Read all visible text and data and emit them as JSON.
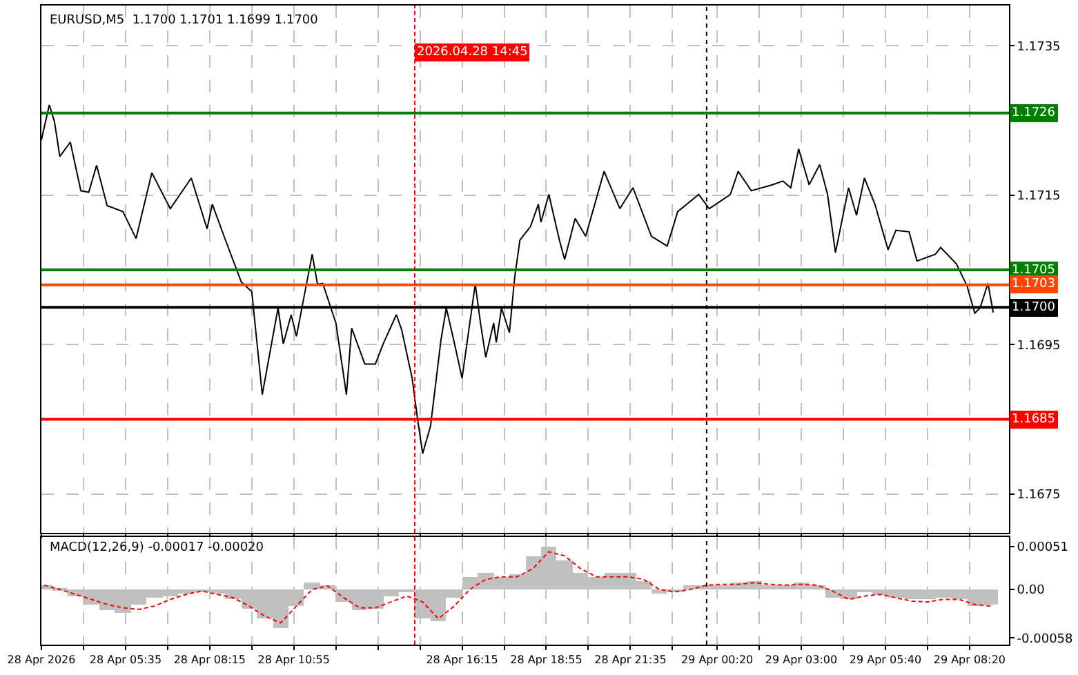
{
  "chart_data": [
    {
      "type": "line",
      "title": "EURUSD,M5  1.1700 1.1701 1.1699 1.1700",
      "x": [
        "2026-04-28T02:55",
        "2026-04-28T03:10",
        "2026-04-28T03:20",
        "2026-04-28T03:30",
        "2026-04-28T03:50",
        "2026-04-28T04:10",
        "2026-04-28T04:25",
        "2026-04-28T04:40",
        "2026-04-28T05:00",
        "2026-04-28T05:30",
        "2026-04-28T05:55",
        "2026-04-28T06:25",
        "2026-04-28T07:00",
        "2026-04-28T07:40",
        "2026-04-28T08:10",
        "2026-04-28T08:20",
        "2026-04-28T08:45",
        "2026-04-28T09:15",
        "2026-04-28T09:35",
        "2026-04-28T09:55",
        "2026-04-28T10:25",
        "2026-04-28T10:35",
        "2026-04-28T10:50",
        "2026-04-28T11:00",
        "2026-04-28T11:30",
        "2026-04-28T11:40",
        "2026-04-28T11:50",
        "2026-04-28T12:15",
        "2026-04-28T12:35",
        "2026-04-28T12:45",
        "2026-04-28T13:10",
        "2026-04-28T13:30",
        "2026-04-28T13:45",
        "2026-04-28T14:10",
        "2026-04-28T14:20",
        "2026-04-28T14:40",
        "2026-04-28T14:50",
        "2026-04-28T15:00",
        "2026-04-28T15:15",
        "2026-04-28T15:35",
        "2026-04-28T15:45",
        "2026-04-28T16:00",
        "2026-04-28T16:15",
        "2026-04-28T16:40",
        "2026-04-28T16:50",
        "2026-04-28T17:00",
        "2026-04-28T17:15",
        "2026-04-28T17:20",
        "2026-04-28T17:30",
        "2026-04-28T17:45",
        "2026-04-28T17:55",
        "2026-04-28T18:05",
        "2026-04-28T18:25",
        "2026-04-28T18:40",
        "2026-04-28T18:45",
        "2026-04-28T19:00",
        "2026-04-28T19:20",
        "2026-04-28T19:30",
        "2026-04-28T19:50",
        "2026-04-28T20:10",
        "2026-04-28T20:45",
        "2026-04-28T21:15",
        "2026-04-28T21:40",
        "2026-04-28T22:15",
        "2026-04-28T22:45",
        "2026-04-28T23:05",
        "2026-04-28T23:45",
        "2026-04-29T00:05",
        "2026-04-29T00:45",
        "2026-04-29T01:00",
        "2026-04-29T01:25",
        "2026-04-29T02:05",
        "2026-04-29T02:25",
        "2026-04-29T02:40",
        "2026-04-29T02:55",
        "2026-04-29T03:15",
        "2026-04-29T03:35",
        "2026-04-29T03:50",
        "2026-04-29T04:05",
        "2026-04-29T04:30",
        "2026-04-29T04:45",
        "2026-04-29T05:00",
        "2026-04-29T05:20",
        "2026-04-29T05:45",
        "2026-04-29T06:00",
        "2026-04-29T06:25",
        "2026-04-29T06:40",
        "2026-04-29T07:15",
        "2026-04-29T07:25",
        "2026-04-29T07:55",
        "2026-04-29T08:15",
        "2026-04-29T08:30",
        "2026-04-29T08:40",
        "2026-04-29T08:55",
        "2026-04-29T09:05"
      ],
      "series": [
        {
          "color": "#000000",
          "values": [
            1.17224,
            1.17271,
            1.17248,
            1.17202,
            1.17221,
            1.17156,
            1.17154,
            1.1719,
            1.17136,
            1.17128,
            1.17092,
            1.1718,
            1.17132,
            1.17173,
            1.17105,
            1.17138,
            1.1709,
            1.17034,
            1.17021,
            1.16883,
            1.16999,
            1.16951,
            1.1699,
            1.16961,
            1.17071,
            1.17031,
            1.17032,
            1.16979,
            1.16883,
            1.16972,
            1.16924,
            1.16924,
            1.16951,
            1.1699,
            1.1697,
            1.16905,
            1.16852,
            1.16804,
            1.16841,
            1.16957,
            1.16999,
            1.16953,
            1.16905,
            1.17031,
            1.16979,
            1.16933,
            1.16979,
            1.16953,
            1.16999,
            1.16966,
            1.1704,
            1.1709,
            1.17108,
            1.17138,
            1.17114,
            1.17151,
            1.1709,
            1.17064,
            1.17119,
            1.17095,
            1.17182,
            1.17132,
            1.1716,
            1.17095,
            1.17082,
            1.17128,
            1.17151,
            1.17132,
            1.17151,
            1.17182,
            1.17156,
            1.17164,
            1.17169,
            1.1716,
            1.17212,
            1.17164,
            1.17191,
            1.17151,
            1.17073,
            1.1716,
            1.17123,
            1.17173,
            1.17138,
            1.17077,
            1.17103,
            1.17101,
            1.17062,
            1.17071,
            1.1708,
            1.17058,
            1.17029,
            1.16992,
            1.16999,
            1.17032,
            1.16993
          ]
        }
      ],
      "xlim": [
        "2026-04-28T02:55",
        "2026-04-29T09:35"
      ],
      "xticks": [
        {
          "value": "2026-04-28T02:55",
          "label": null
        },
        {
          "value": "2026-04-28T04:15",
          "label": null
        },
        {
          "value": "2026-04-28T05:35",
          "label": null
        },
        {
          "value": "2026-04-28T06:55",
          "label": null
        },
        {
          "value": "2026-04-28T08:15",
          "label": null
        },
        {
          "value": "2026-04-28T09:35",
          "label": null
        },
        {
          "value": "2026-04-28T10:55",
          "label": null
        },
        {
          "value": "2026-04-28T12:15",
          "label": null
        },
        {
          "value": "2026-04-28T13:35",
          "label": null
        },
        {
          "value": "2026-04-28T14:55",
          "label": null
        },
        {
          "value": "2026-04-28T16:15",
          "label": null
        },
        {
          "value": "2026-04-28T17:35",
          "label": null
        },
        {
          "value": "2026-04-28T18:55",
          "label": null
        },
        {
          "value": "2026-04-28T20:15",
          "label": null
        },
        {
          "value": "2026-04-28T21:35",
          "label": null
        },
        {
          "value": "2026-04-28T22:55",
          "label": null
        },
        {
          "value": "2026-04-29T00:20",
          "label": null
        },
        {
          "value": "2026-04-29T01:40",
          "label": null
        },
        {
          "value": "2026-04-29T03:00",
          "label": null
        },
        {
          "value": "2026-04-29T04:20",
          "label": null
        },
        {
          "value": "2026-04-29T05:40",
          "label": null
        },
        {
          "value": "2026-04-29T07:00",
          "label": null
        },
        {
          "value": "2026-04-29T08:20",
          "label": null
        }
      ],
      "ylim": [
        1.16698,
        1.17404
      ],
      "yticks": [
        1.1735,
        1.1715,
        1.1695,
        1.1675
      ],
      "ref_lines": [
        {
          "axis": "y",
          "value": 1.1726,
          "label": "1.1726",
          "color": "#008000"
        },
        {
          "axis": "y",
          "value": 1.1705,
          "label": "1.1705",
          "color": "#008000"
        },
        {
          "axis": "y",
          "value": 1.1703,
          "label": "1.1703",
          "color": "#ff4500"
        },
        {
          "axis": "y",
          "value": 1.17,
          "label": "1.1700",
          "color": "#000000"
        },
        {
          "axis": "y",
          "value": 1.1685,
          "label": "1.1685",
          "color": "#ff0000"
        },
        {
          "axis": "x",
          "value": "2026-04-28T14:45",
          "label": "2026.04.28 14:45",
          "color": "#ff0000",
          "line_style": "dashed"
        },
        {
          "axis": "x",
          "value": "2026-04-29T00:00",
          "color": "#000000",
          "line_style": "dotted"
        }
      ],
      "grid": true,
      "tick_labels": "y"
    },
    {
      "type": "bar",
      "title": "MACD(12,26,9) -0.00017 -0.00020",
      "x": [
        "2026-04-28T03:00",
        "2026-04-28T03:30",
        "2026-04-28T04:00",
        "2026-04-28T04:30",
        "2026-04-28T05:00",
        "2026-04-28T05:30",
        "2026-04-28T06:00",
        "2026-04-28T06:30",
        "2026-04-28T07:00",
        "2026-04-28T07:30",
        "2026-04-28T08:00",
        "2026-04-28T08:30",
        "2026-04-28T09:00",
        "2026-04-28T09:30",
        "2026-04-28T10:00",
        "2026-04-28T10:30",
        "2026-04-28T11:00",
        "2026-04-28T11:30",
        "2026-04-28T12:00",
        "2026-04-28T12:30",
        "2026-04-28T13:00",
        "2026-04-28T13:30",
        "2026-04-28T14:00",
        "2026-04-28T14:30",
        "2026-04-28T15:00",
        "2026-04-28T15:30",
        "2026-04-28T16:00",
        "2026-04-28T16:30",
        "2026-04-28T17:00",
        "2026-04-28T17:30",
        "2026-04-28T18:00",
        "2026-04-28T18:30",
        "2026-04-28T19:00",
        "2026-04-28T19:30",
        "2026-04-28T20:00",
        "2026-04-28T20:30",
        "2026-04-28T21:00",
        "2026-04-28T21:30",
        "2026-04-28T22:00",
        "2026-04-28T22:30",
        "2026-04-28T23:00",
        "2026-04-28T23:30",
        "2026-04-29T00:00",
        "2026-04-29T00:30",
        "2026-04-29T01:00",
        "2026-04-29T01:30",
        "2026-04-29T02:00",
        "2026-04-29T02:30",
        "2026-04-29T03:00",
        "2026-04-29T03:30",
        "2026-04-29T04:00",
        "2026-04-29T04:30",
        "2026-04-29T05:00",
        "2026-04-29T05:30",
        "2026-04-29T06:00",
        "2026-04-29T06:30",
        "2026-04-29T07:00",
        "2026-04-29T07:30",
        "2026-04-29T08:00",
        "2026-04-29T08:30",
        "2026-04-29T09:00"
      ],
      "series": [
        {
          "type": "bar",
          "color": "#c0c0c0",
          "values": [
            5e-05,
            2e-05,
            -8e-05,
            -0.00018,
            -0.00025,
            -0.00027,
            -0.00018,
            -0.0001,
            -8e-05,
            -4e-05,
            -2e-05,
            -5e-05,
            -0.00012,
            -0.00022,
            -0.00035,
            -0.00045,
            -0.0002,
            8e-05,
            6e-05,
            -0.00015,
            -0.00025,
            -0.00022,
            -8e-05,
            -2e-05,
            -0.00035,
            -0.00038,
            -0.0001,
            0.00015,
            0.0002,
            0.00015,
            0.00018,
            0.0004,
            0.00052,
            0.00035,
            0.0002,
            0.00015,
            0.0002,
            0.0002,
            0.0001,
            -5e-05,
            -2e-05,
            5e-05,
            6e-05,
            5e-05,
            8e-05,
            0.0001,
            6e-05,
            6e-05,
            8e-05,
            5e-05,
            -0.0001,
            -0.00012,
            -2e-05,
            -6e-05,
            -0.0001,
            -0.00012,
            -0.00012,
            -0.0001,
            -0.00012,
            -0.0002,
            -0.00017
          ]
        },
        {
          "type": "line",
          "color": "#ff0000",
          "line_style": "dashed",
          "values": [
            5e-05,
            0.0,
            -6e-05,
            -0.00012,
            -0.00018,
            -0.00022,
            -0.00024,
            -0.0002,
            -0.00012,
            -6e-05,
            -2e-05,
            -6e-05,
            -0.0001,
            -0.0002,
            -0.00032,
            -0.0004,
            -0.0002,
            0.0,
            4e-05,
            -0.0001,
            -0.00022,
            -0.00022,
            -0.00015,
            -8e-05,
            -0.00015,
            -0.00035,
            -0.0002,
            0.0,
            0.00012,
            0.00015,
            0.00015,
            0.00025,
            0.00045,
            0.0004,
            0.00025,
            0.00015,
            0.00015,
            0.00015,
            0.00012,
            0.0,
            -3e-05,
            0.0,
            5e-05,
            6e-05,
            6e-05,
            8e-05,
            6e-05,
            5e-05,
            6e-05,
            5e-05,
            -2e-05,
            -0.00012,
            -8e-05,
            -6e-05,
            -0.0001,
            -0.00014,
            -0.00015,
            -0.00012,
            -0.00012,
            -0.00018,
            -0.0002
          ]
        }
      ],
      "xlim": [
        "2026-04-28T02:55",
        "2026-04-29T09:35"
      ],
      "xticks": [
        {
          "value": "2026-04-28T02:55",
          "label": "28 Apr 2026"
        },
        {
          "value": "2026-04-28T04:15",
          "label": null
        },
        {
          "value": "2026-04-28T05:35",
          "label": "28 Apr 05:35"
        },
        {
          "value": "2026-04-28T06:55",
          "label": null
        },
        {
          "value": "2026-04-28T08:15",
          "label": "28 Apr 08:15"
        },
        {
          "value": "2026-04-28T09:35",
          "label": null
        },
        {
          "value": "2026-04-28T10:55",
          "label": "28 Apr 10:55"
        },
        {
          "value": "2026-04-28T12:15",
          "label": null
        },
        {
          "value": "2026-04-28T13:35",
          "label": null
        },
        {
          "value": "2026-04-28T14:55",
          "label": null
        },
        {
          "value": "2026-04-28T16:15",
          "label": "28 Apr 16:15"
        },
        {
          "value": "2026-04-28T17:35",
          "label": null
        },
        {
          "value": "2026-04-28T18:55",
          "label": "28 Apr 18:55"
        },
        {
          "value": "2026-04-28T20:15",
          "label": null
        },
        {
          "value": "2026-04-28T21:35",
          "label": "28 Apr 21:35"
        },
        {
          "value": "2026-04-28T22:55",
          "label": null
        },
        {
          "value": "2026-04-29T00:20",
          "label": "29 Apr 00:20"
        },
        {
          "value": "2026-04-29T01:40",
          "label": null
        },
        {
          "value": "2026-04-29T03:00",
          "label": "29 Apr 03:00"
        },
        {
          "value": "2026-04-29T04:20",
          "label": null
        },
        {
          "value": "2026-04-29T05:40",
          "label": "29 Apr 05:40"
        },
        {
          "value": "2026-04-29T07:00",
          "label": null
        },
        {
          "value": "2026-04-29T08:20",
          "label": "29 Apr 08:20"
        }
      ],
      "ylim": [
        -0.00066,
        0.00063
      ],
      "yticks": [
        0.00051,
        {
          "value": 0.0,
          "label": "0.00"
        },
        -0.00058
      ],
      "ref_lines": [
        {
          "axis": "x",
          "value": "2026-04-28T14:45",
          "color": "#ff0000",
          "line_style": "dashed"
        },
        {
          "axis": "x",
          "value": "2026-04-29T00:00",
          "color": "#000000",
          "line_style": "dotted"
        }
      ],
      "grid": "x"
    }
  ]
}
